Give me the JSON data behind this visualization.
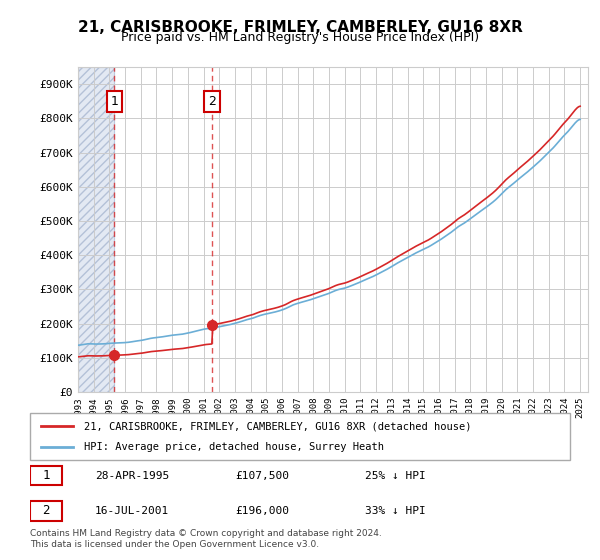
{
  "title": "21, CARISBROOKE, FRIMLEY, CAMBERLEY, GU16 8XR",
  "subtitle": "Price paid vs. HM Land Registry's House Price Index (HPI)",
  "ylabel": "",
  "ylim": [
    0,
    950000
  ],
  "yticks": [
    0,
    100000,
    200000,
    300000,
    400000,
    500000,
    600000,
    700000,
    800000,
    900000
  ],
  "ytick_labels": [
    "£0",
    "£100K",
    "£200K",
    "£300K",
    "£400K",
    "£500K",
    "£600K",
    "£700K",
    "£800K",
    "£900K"
  ],
  "sale1_date": 1995.32,
  "sale1_price": 107500,
  "sale1_label": "1",
  "sale2_date": 2001.54,
  "sale2_price": 196000,
  "sale2_label": "2",
  "hpi_color": "#6baed6",
  "price_color": "#d62728",
  "background_hatch_color": "#d0d8e8",
  "legend_line1": "21, CARISBROOKE, FRIMLEY, CAMBERLEY, GU16 8XR (detached house)",
  "legend_line2": "HPI: Average price, detached house, Surrey Heath",
  "note1_num": "1",
  "note1_date": "28-APR-1995",
  "note1_price": "£107,500",
  "note1_hpi": "25% ↓ HPI",
  "note2_num": "2",
  "note2_date": "16-JUL-2001",
  "note2_price": "£196,000",
  "note2_hpi": "33% ↓ HPI",
  "copyright": "Contains HM Land Registry data © Crown copyright and database right 2024.\nThis data is licensed under the Open Government Licence v3.0."
}
